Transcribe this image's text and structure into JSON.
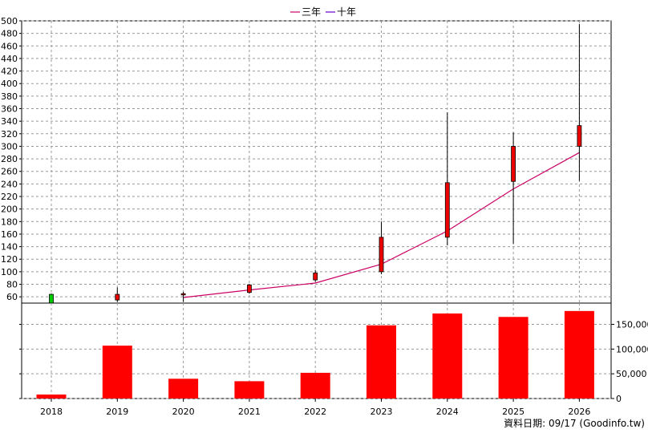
{
  "legend": [
    {
      "label": "三年",
      "color": "#cc0066"
    },
    {
      "label": "十年",
      "color": "#6600cc"
    }
  ],
  "footer": "資料日期: 09/17  (Goodinfo.tw)",
  "chart_data": [
    {
      "type": "candlestick",
      "categories": [
        "2018",
        "2019",
        "2020",
        "2021",
        "2022",
        "2023",
        "2024",
        "2025",
        "2026"
      ],
      "ylim": [
        50,
        500
      ],
      "yticks": [
        60,
        80,
        100,
        120,
        140,
        160,
        180,
        200,
        220,
        240,
        260,
        280,
        300,
        320,
        340,
        360,
        380,
        400,
        420,
        440,
        460,
        480,
        500
      ],
      "grid": true,
      "up_color": "#ee0000",
      "down_color": "#00cc00",
      "candles": [
        {
          "x": "2018",
          "open": 64,
          "close": 50,
          "high": 65,
          "low": 49
        },
        {
          "x": "2019",
          "open": 55,
          "close": 64,
          "high": 75,
          "low": 52
        },
        {
          "x": "2020",
          "open": 63,
          "close": 65,
          "high": 68,
          "low": 52
        },
        {
          "x": "2021",
          "open": 67,
          "close": 79,
          "high": 80,
          "low": 65
        },
        {
          "x": "2022",
          "open": 87,
          "close": 98,
          "high": 103,
          "low": 84
        },
        {
          "x": "2023",
          "open": 100,
          "close": 155,
          "high": 180,
          "low": 96
        },
        {
          "x": "2024",
          "open": 155,
          "close": 242,
          "high": 354,
          "low": 142
        },
        {
          "x": "2025",
          "open": 244,
          "close": 300,
          "high": 322,
          "low": 145
        },
        {
          "x": "2026",
          "open": 300,
          "close": 333,
          "high": 495,
          "low": 245
        }
      ],
      "series": [
        {
          "name": "三年",
          "color": "#cc0066",
          "values": [
            null,
            null,
            59,
            71,
            82,
            112,
            165,
            232,
            290
          ]
        }
      ]
    },
    {
      "type": "bar",
      "categories": [
        "2018",
        "2019",
        "2020",
        "2021",
        "2022",
        "2023",
        "2024",
        "2025",
        "2026"
      ],
      "values": [
        8000,
        107000,
        40000,
        35000,
        52000,
        148000,
        172000,
        165000,
        177000
      ],
      "ylim": [
        0,
        180000
      ],
      "yticks": [
        0,
        50000,
        100000,
        150000
      ],
      "ytick_labels": [
        "0",
        "50,000",
        "100,000",
        "150,000"
      ],
      "color": "#ff0000",
      "grid": true
    }
  ]
}
